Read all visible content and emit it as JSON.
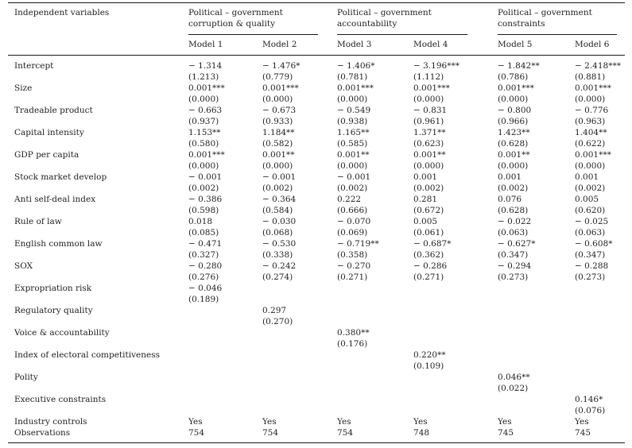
{
  "table": {
    "corner_label": "Independent variables",
    "col_groups": [
      {
        "label": "Political – government corruption & quality",
        "models": [
          "Model 1",
          "Model 2"
        ]
      },
      {
        "label": "Political – government accountability",
        "models": [
          "Model 3",
          "Model 4"
        ]
      },
      {
        "label": "Political – government constraints",
        "models": [
          "Model 5",
          "Model 6"
        ]
      }
    ],
    "rows": [
      {
        "label": "Intercept",
        "coef": [
          "− 1.314",
          "− 1.476*",
          "− 1.406*",
          "− 3.196***",
          "− 1.842**",
          "− 2.418***"
        ],
        "se": [
          "(1.213)",
          "(0.779)",
          "(0.781)",
          "(1.112)",
          "(0.786)",
          "(0.881)"
        ]
      },
      {
        "label": "Size",
        "coef": [
          "0.001***",
          "0.001***",
          "0.001***",
          "0.001***",
          "0.001***",
          "0.001***"
        ],
        "se": [
          "(0.000)",
          "(0.000)",
          "(0.000)",
          "(0.000)",
          "(0.000)",
          "(0.000)"
        ]
      },
      {
        "label": "Tradeable product",
        "coef": [
          "− 0.663",
          "− 0.673",
          "− 0.549",
          "− 0.831",
          "− 0.800",
          "− 0.776"
        ],
        "se": [
          "(0.937)",
          "(0.933)",
          "(0.938)",
          "(0.961)",
          "(0.966)",
          "(0.963)"
        ]
      },
      {
        "label": "Capital intensity",
        "coef": [
          "1.153**",
          "1.184**",
          "1.165**",
          "1.371**",
          "1.423**",
          "1.404**"
        ],
        "se": [
          "(0.580)",
          "(0.582)",
          "(0.585)",
          "(0.623)",
          "(0.628)",
          "(0.622)"
        ]
      },
      {
        "label": "GDP per capita",
        "coef": [
          "0.001***",
          "0.001**",
          "0.001**",
          "0.001**",
          "0.001**",
          "0.001***"
        ],
        "se": [
          "(0.000)",
          "(0.000)",
          "(0.000)",
          "(0.000)",
          "(0.000)",
          "(0.000)"
        ]
      },
      {
        "label": "Stock market develop",
        "coef": [
          "− 0.001",
          "− 0.001",
          "− 0.001",
          "0.001",
          "0.001",
          "0.001"
        ],
        "se": [
          "(0.002)",
          "(0.002)",
          "(0.002)",
          "(0.002)",
          "(0.002)",
          "(0.002)"
        ]
      },
      {
        "label": "Anti self-deal index",
        "coef": [
          "− 0.386",
          "− 0.364",
          "0.222",
          "0.281",
          "0.076",
          "0.005"
        ],
        "se": [
          "(0.598)",
          "(0.584)",
          "(0.666)",
          "(0.672)",
          "(0.628)",
          "(0.620)"
        ]
      },
      {
        "label": "Rule of law",
        "coef": [
          "0.018",
          "− 0.030",
          "− 0.070",
          "0.005",
          "− 0.022",
          "− 0.025"
        ],
        "se": [
          "(0.085)",
          "(0.068)",
          "(0.069)",
          "(0.061)",
          "(0.063)",
          "(0.063)"
        ]
      },
      {
        "label": "English common law",
        "coef": [
          "− 0.471",
          "− 0.530",
          "− 0.719**",
          "− 0.687*",
          "− 0.627*",
          "− 0.608*"
        ],
        "se": [
          "(0.327)",
          "(0.338)",
          "(0.358)",
          "(0.362)",
          "(0.347)",
          "(0.347)"
        ]
      },
      {
        "label": "SOX",
        "coef": [
          "− 0.280",
          "− 0.242",
          "− 0.270",
          "− 0.286",
          "− 0.294",
          "− 0.288"
        ],
        "se": [
          "(0.276)",
          "(0.274)",
          "(0.271)",
          "(0.271)",
          "(0.273)",
          "(0.273)"
        ]
      },
      {
        "label": "Expropriation risk",
        "coef": [
          "− 0.046",
          "",
          "",
          "",
          "",
          ""
        ],
        "se": [
          "(0.189)",
          "",
          "",
          "",
          "",
          ""
        ]
      },
      {
        "label": "Regulatory quality",
        "coef": [
          "",
          "0.297",
          "",
          "",
          "",
          ""
        ],
        "se": [
          "",
          "(0.270)",
          "",
          "",
          "",
          ""
        ]
      },
      {
        "label": "Voice & accountability",
        "coef": [
          "",
          "",
          "0.380**",
          "",
          "",
          ""
        ],
        "se": [
          "",
          "",
          "(0.176)",
          "",
          "",
          ""
        ]
      },
      {
        "label": "Index of electoral competitiveness",
        "coef": [
          "",
          "",
          "",
          "0.220**",
          "",
          ""
        ],
        "se": [
          "",
          "",
          "",
          "(0.109)",
          "",
          ""
        ]
      },
      {
        "label": "Polity",
        "coef": [
          "",
          "",
          "",
          "",
          "0.046**",
          ""
        ],
        "se": [
          "",
          "",
          "",
          "",
          "(0.022)",
          ""
        ]
      },
      {
        "label": "Executive constraints",
        "coef": [
          "",
          "",
          "",
          "",
          "",
          "0.146*"
        ],
        "se": [
          "",
          "",
          "",
          "",
          "",
          "(0.076)"
        ]
      }
    ],
    "footer_rows": [
      {
        "label": "Industry controls",
        "values": [
          "Yes",
          "Yes",
          "Yes",
          "Yes",
          "Yes",
          "Yes"
        ]
      },
      {
        "label": "Observations",
        "values": [
          "754",
          "754",
          "754",
          "748",
          "745",
          "745"
        ]
      }
    ]
  }
}
